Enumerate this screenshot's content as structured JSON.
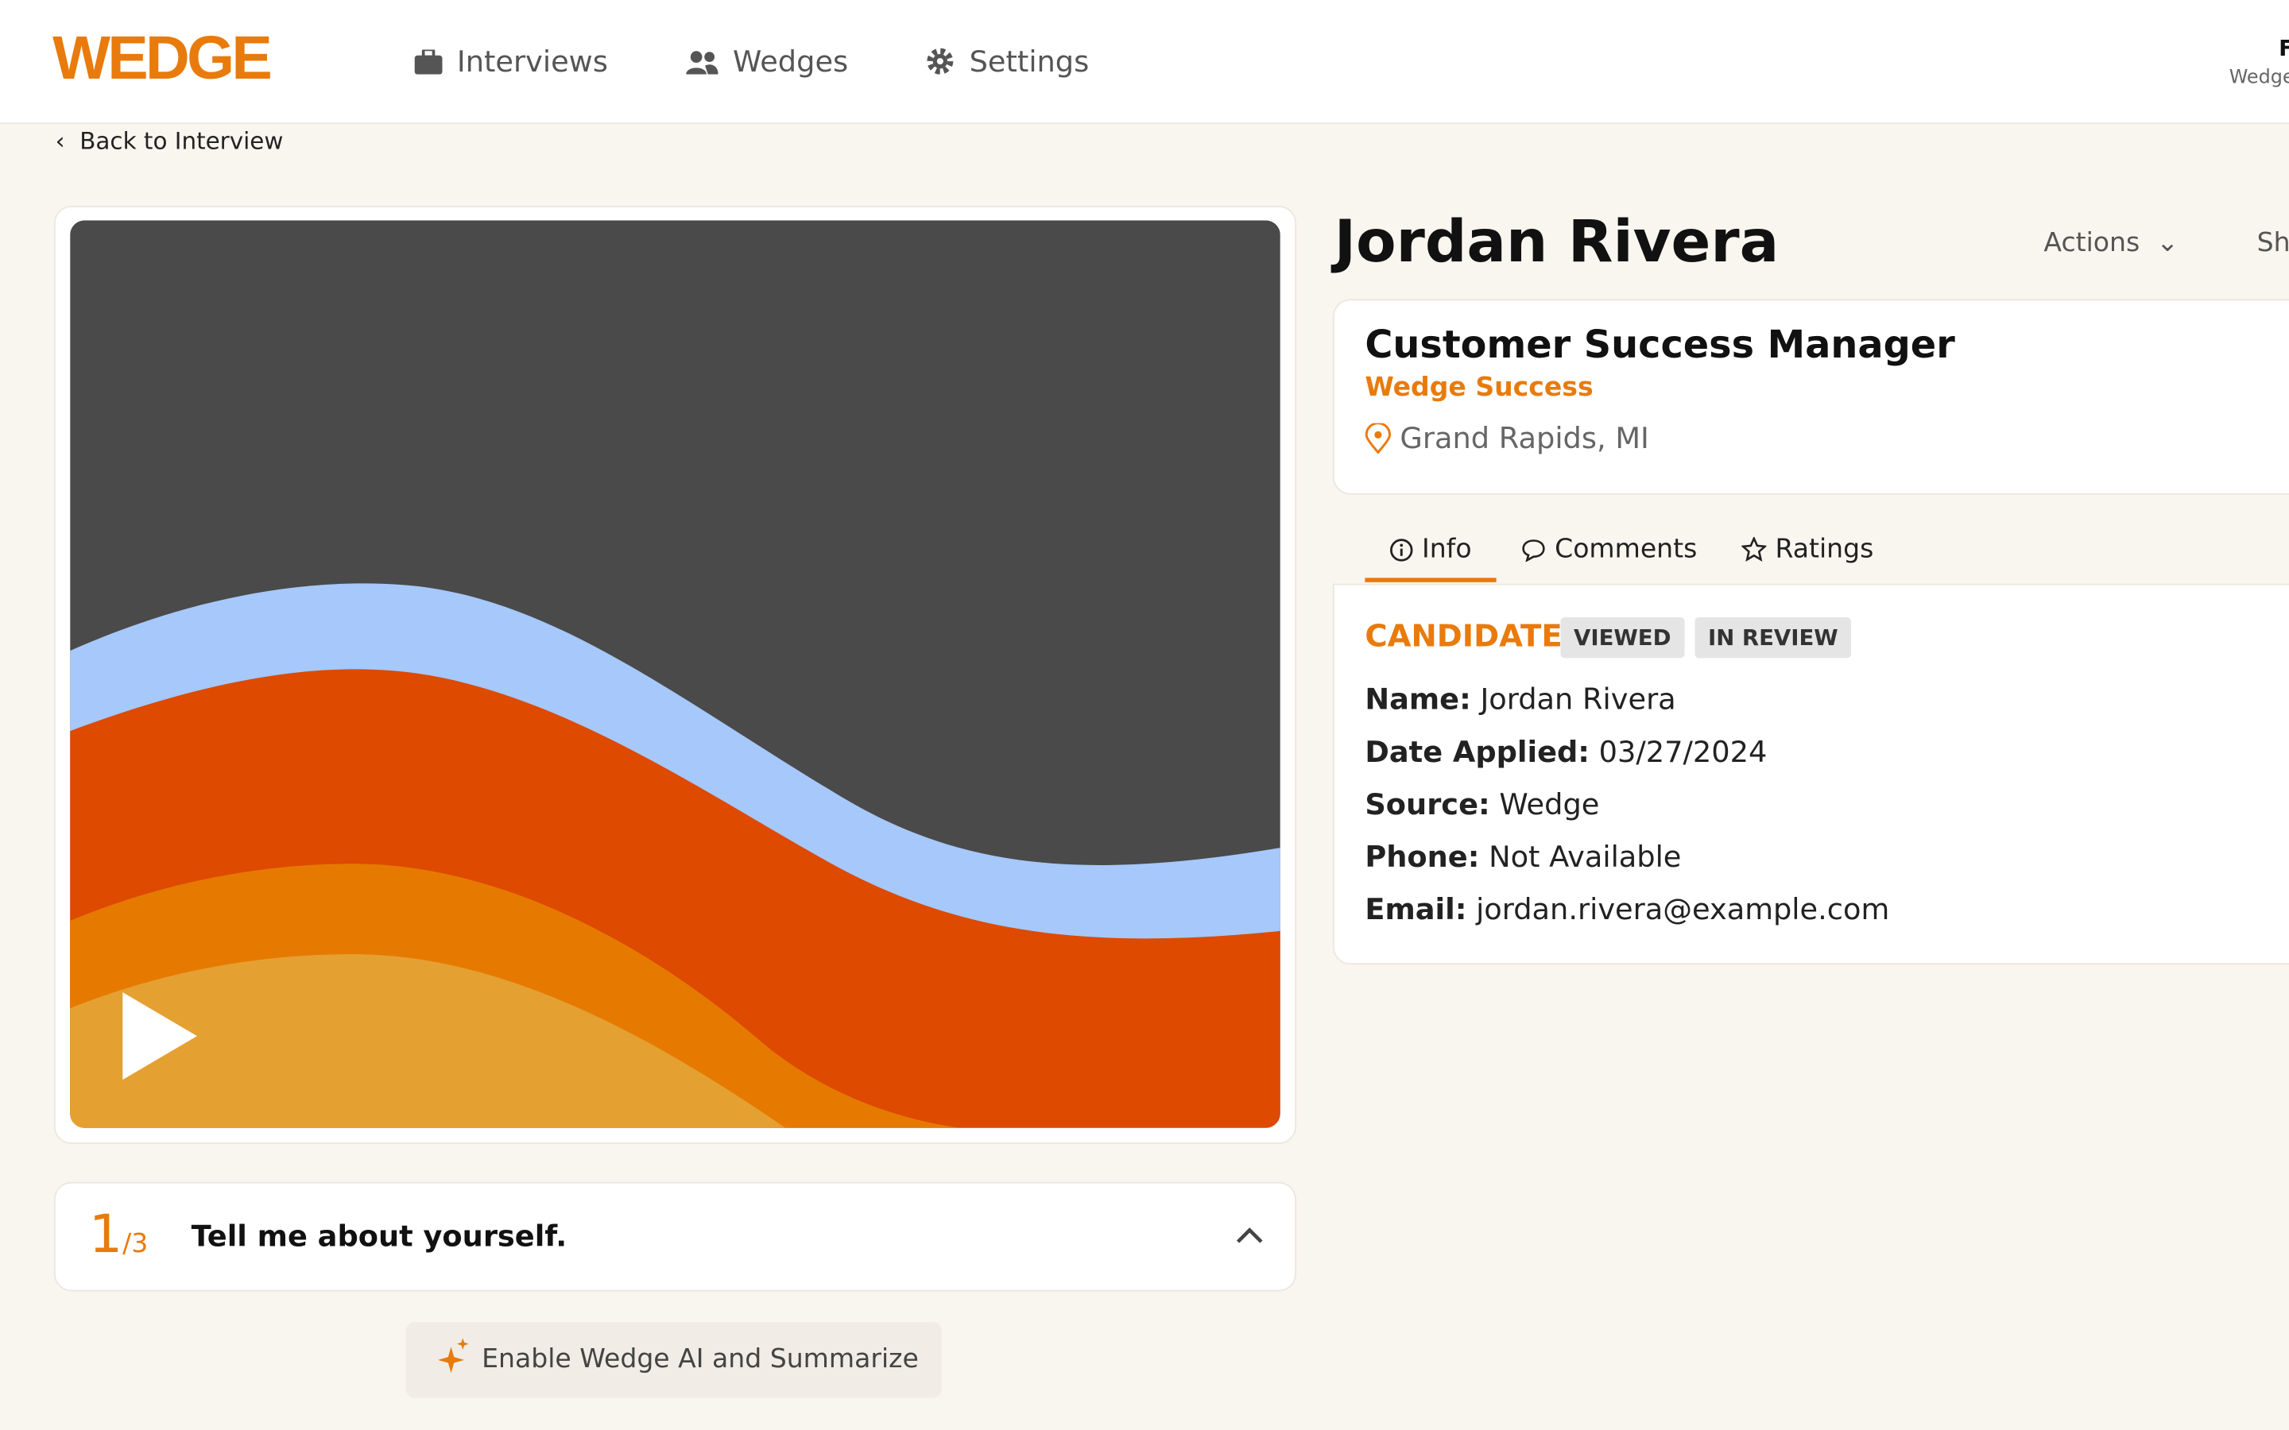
{
  "nav": {
    "logo": "WEDGE",
    "items": [
      "Interviews",
      "Wedges",
      "Settings"
    ],
    "user": "F",
    "org": "Wedge"
  },
  "back": "Back to Interview",
  "candidate": {
    "name": "Jordan Rivera",
    "actions": [
      "Actions",
      "Sh"
    ]
  },
  "job": {
    "title": "Customer Success Manager",
    "company": "Wedge Success",
    "location": "Grand Rapids, MI"
  },
  "tabs": [
    "Info",
    "Comments",
    "Ratings"
  ],
  "info": {
    "status": "CANDIDATE",
    "badges": [
      "VIEWED",
      "IN REVIEW"
    ],
    "fields": [
      {
        "label": "Name:",
        "value": "Jordan Rivera"
      },
      {
        "label": "Date Applied:",
        "value": "03/27/2024"
      },
      {
        "label": "Source:",
        "value": "Wedge"
      },
      {
        "label": "Phone:",
        "value": "Not Available"
      },
      {
        "label": "Email:",
        "value": "jordan.rivera@example.com"
      }
    ]
  },
  "question": {
    "number": "1",
    "total": "/3",
    "text": "Tell me about yourself."
  },
  "ai_button": "Enable Wedge AI and Summarize"
}
